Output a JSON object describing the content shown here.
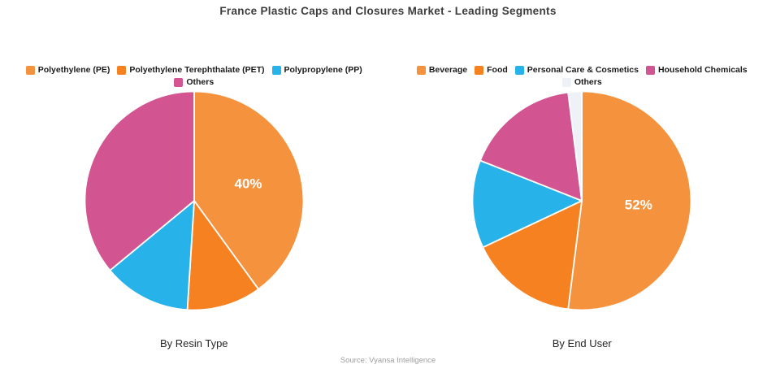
{
  "title": "France Plastic Caps and Closures Market - Leading Segments",
  "source": "Source: Vyansa Intelligence",
  "chart_data": [
    {
      "type": "pie",
      "title": "By Resin Type",
      "labels": [
        "Polyethylene (PE)",
        "Polyethylene Terephthalate (PET)",
        "Polypropylene (PP)",
        "Others"
      ],
      "values": [
        40,
        11,
        13,
        36
      ],
      "colors": [
        "#F5923E",
        "#F68121",
        "#27B2E9",
        "#D25591"
      ],
      "data_labels": [
        "40%",
        "",
        "",
        ""
      ],
      "start_angle_deg": 0,
      "direction": "clockwise",
      "legend_position": "top",
      "legend_rows": [
        [
          0,
          1,
          2
        ],
        [
          3
        ]
      ]
    },
    {
      "type": "pie",
      "title": "By End User",
      "labels": [
        "Beverage",
        "Food",
        "Personal Care & Cosmetics",
        "Household Chemicals",
        "Others"
      ],
      "values": [
        52,
        16,
        13,
        17,
        2
      ],
      "colors": [
        "#F5923E",
        "#F68121",
        "#27B2E9",
        "#D25591",
        "#EEF1F6"
      ],
      "data_labels": [
        "52%",
        "",
        "",
        "",
        ""
      ],
      "start_angle_deg": 0,
      "direction": "clockwise",
      "legend_position": "top",
      "legend_rows": [
        [
          0,
          1,
          2,
          3
        ],
        [
          4
        ]
      ]
    }
  ]
}
